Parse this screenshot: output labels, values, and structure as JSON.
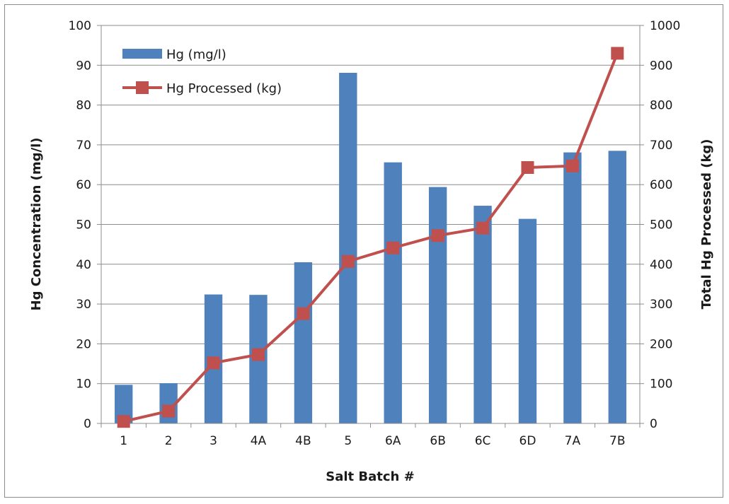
{
  "chart_data": {
    "type": "bar",
    "title": "",
    "xlabel": "Salt Batch #",
    "ylabel": "Hg Concentration (mg/l)",
    "y2label": "Total Hg Processed (kg)",
    "categories": [
      "1",
      "2",
      "3",
      "4A",
      "4B",
      "5",
      "6A",
      "6B",
      "6C",
      "6D",
      "7A",
      "7B"
    ],
    "ylim": [
      0,
      100
    ],
    "y2lim": [
      0,
      1000
    ],
    "yticks": [
      0,
      10,
      20,
      30,
      40,
      50,
      60,
      70,
      80,
      90,
      100
    ],
    "y2ticks": [
      0,
      100,
      200,
      300,
      400,
      500,
      600,
      700,
      800,
      900,
      1000
    ],
    "grid": true,
    "legend_position": "top-left",
    "series": [
      {
        "name": "Hg (mg/l)",
        "type": "bar",
        "axis": "left",
        "color": "#4f81bd",
        "values": [
          9.7,
          10.1,
          32.4,
          32.3,
          40.5,
          88.1,
          65.6,
          59.4,
          54.7,
          51.4,
          68.1,
          68.5
        ]
      },
      {
        "name": "Hg Processed (kg)",
        "type": "line",
        "axis": "right",
        "color": "#c0504d",
        "marker": "square",
        "values": [
          5,
          31,
          152,
          173,
          276,
          407,
          441,
          472,
          491,
          643,
          647,
          930
        ]
      }
    ]
  }
}
